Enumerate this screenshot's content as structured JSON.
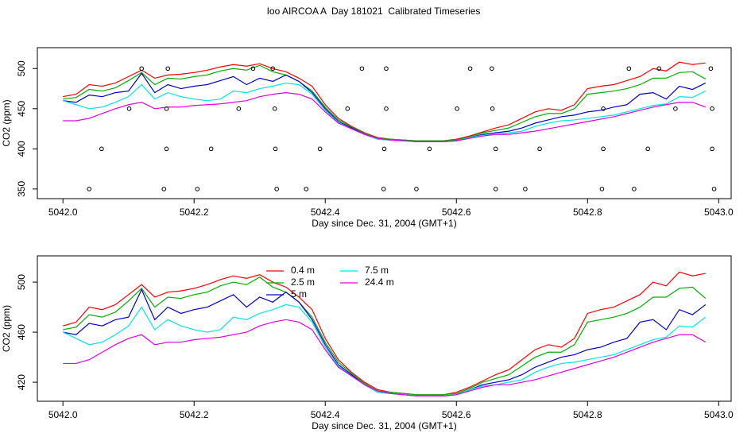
{
  "chart_data": [
    {
      "type": "line",
      "title": "Ioo AIRCOA A  Day 181021  Calibrated Timeseries",
      "x_label": "Day since Dec. 31, 2004 (GMT+1)",
      "y_label": "CO2 (ppm)",
      "x": [
        5042.0,
        5042.02,
        5042.04,
        5042.06,
        5042.08,
        5042.1,
        5042.12,
        5042.14,
        5042.16,
        5042.18,
        5042.2,
        5042.22,
        5042.24,
        5042.26,
        5042.28,
        5042.3,
        5042.32,
        5042.34,
        5042.36,
        5042.38,
        5042.4,
        5042.42,
        5042.44,
        5042.46,
        5042.48,
        5042.5,
        5042.52,
        5042.54,
        5042.56,
        5042.58,
        5042.6,
        5042.62,
        5042.64,
        5042.66,
        5042.68,
        5042.7,
        5042.72,
        5042.74,
        5042.76,
        5042.78,
        5042.8,
        5042.82,
        5042.84,
        5042.86,
        5042.88,
        5042.9,
        5042.92,
        5042.94,
        5042.96,
        5042.98
      ],
      "series": [
        {
          "color": "#ff0000",
          "values": [
            465,
            468,
            480,
            478,
            482,
            490,
            498,
            488,
            492,
            493,
            495,
            498,
            502,
            505,
            503,
            506,
            500,
            496,
            488,
            478,
            455,
            438,
            428,
            420,
            414,
            412,
            411,
            410,
            410,
            410,
            412,
            416,
            421,
            426,
            430,
            438,
            446,
            450,
            448,
            455,
            475,
            478,
            480,
            485,
            490,
            500,
            497,
            508,
            505,
            507
          ]
        },
        {
          "color": "#00b000",
          "values": [
            462,
            464,
            474,
            472,
            476,
            485,
            495,
            480,
            488,
            487,
            490,
            492,
            497,
            500,
            498,
            504,
            496,
            492,
            484,
            472,
            452,
            436,
            427,
            419,
            413,
            412,
            411,
            410,
            410,
            410,
            411,
            415,
            420,
            423,
            426,
            433,
            440,
            444,
            444,
            450,
            468,
            470,
            472,
            475,
            480,
            488,
            488,
            495,
            496,
            487
          ]
        },
        {
          "color": "#0000cd",
          "values": [
            460,
            458,
            467,
            465,
            470,
            472,
            494,
            470,
            480,
            475,
            478,
            480,
            485,
            490,
            480,
            488,
            484,
            492,
            484,
            470,
            450,
            434,
            426,
            418,
            412,
            411,
            410,
            409,
            409,
            409,
            410,
            414,
            418,
            420,
            422,
            426,
            432,
            436,
            440,
            442,
            446,
            448,
            452,
            455,
            468,
            470,
            462,
            478,
            474,
            482
          ]
        },
        {
          "color": "#00e5e5",
          "values": [
            460,
            455,
            450,
            452,
            458,
            465,
            480,
            462,
            470,
            465,
            462,
            460,
            462,
            472,
            470,
            475,
            478,
            482,
            480,
            468,
            448,
            433,
            425,
            418,
            412,
            411,
            410,
            409,
            409,
            409,
            410,
            414,
            417,
            418,
            420,
            422,
            428,
            432,
            435,
            436,
            438,
            440,
            442,
            446,
            450,
            454,
            456,
            465,
            464,
            472
          ]
        },
        {
          "color": "#e000e0",
          "values": [
            435,
            435,
            438,
            444,
            450,
            455,
            458,
            450,
            452,
            452,
            454,
            455,
            456,
            458,
            460,
            465,
            468,
            470,
            468,
            462,
            446,
            432,
            425,
            418,
            413,
            411,
            410,
            409,
            409,
            409,
            410,
            413,
            416,
            418,
            418,
            420,
            422,
            425,
            428,
            431,
            434,
            437,
            440,
            444,
            448,
            452,
            455,
            458,
            458,
            452
          ]
        }
      ],
      "points": {
        "x": [
          5042.12,
          5042.16,
          5042.29,
          5042.32,
          5042.456,
          5042.493,
          5042.621,
          5042.654,
          5042.863,
          5042.909,
          5042.988,
          5042.101,
          5042.158,
          5042.268,
          5042.323,
          5042.434,
          5042.493,
          5042.601,
          5042.655,
          5042.824,
          5042.934,
          5042.99,
          5042.059,
          5042.158,
          5042.226,
          5042.324,
          5042.392,
          5042.49,
          5042.559,
          5042.66,
          5042.727,
          5042.824,
          5042.892,
          5042.99,
          5042.04,
          5042.154,
          5042.205,
          5042.326,
          5042.371,
          5042.489,
          5042.539,
          5042.66,
          5042.705,
          5042.822,
          5042.871,
          5042.993
        ],
        "y": [
          500,
          500,
          500,
          500,
          500,
          500,
          500,
          500,
          500,
          500,
          500,
          450,
          450,
          450,
          450,
          450,
          450,
          450,
          450,
          450,
          450,
          450,
          400,
          400,
          400,
          400,
          400,
          400,
          400,
          400,
          400,
          400,
          400,
          400,
          350,
          350,
          350,
          350,
          350,
          350,
          350,
          350,
          350,
          350,
          350,
          350
        ]
      },
      "xlim": [
        5041.961,
        5043.019
      ],
      "ylim": [
        338,
        526
      ],
      "xticks": [
        {
          "value": 5042.0,
          "label": "5042.0"
        },
        {
          "value": 5042.2,
          "label": "5042.2"
        },
        {
          "value": 5042.4,
          "label": "5042.4"
        },
        {
          "value": 5042.6,
          "label": "5042.6"
        },
        {
          "value": 5042.8,
          "label": "5042.8"
        },
        {
          "value": 5043.0,
          "label": "5043.0"
        }
      ],
      "yticks": [
        350,
        400,
        450,
        500
      ]
    },
    {
      "type": "line",
      "x_label": "Day since Dec. 31, 2004 (GMT+1)",
      "y_label": "CO2 (ppm)",
      "x": [
        5042.0,
        5042.02,
        5042.04,
        5042.06,
        5042.08,
        5042.1,
        5042.12,
        5042.14,
        5042.16,
        5042.18,
        5042.2,
        5042.22,
        5042.24,
        5042.26,
        5042.28,
        5042.3,
        5042.32,
        5042.34,
        5042.36,
        5042.38,
        5042.4,
        5042.42,
        5042.44,
        5042.46,
        5042.48,
        5042.5,
        5042.52,
        5042.54,
        5042.56,
        5042.58,
        5042.6,
        5042.62,
        5042.64,
        5042.66,
        5042.68,
        5042.7,
        5042.72,
        5042.74,
        5042.76,
        5042.78,
        5042.8,
        5042.82,
        5042.84,
        5042.86,
        5042.88,
        5042.9,
        5042.92,
        5042.94,
        5042.96,
        5042.98
      ],
      "series": [
        {
          "name": "0.4 m",
          "color": "#ff0000",
          "values": [
            465,
            468,
            480,
            478,
            482,
            490,
            498,
            488,
            492,
            493,
            495,
            498,
            502,
            505,
            503,
            506,
            500,
            496,
            488,
            478,
            455,
            438,
            428,
            420,
            414,
            412,
            411,
            410,
            410,
            410,
            412,
            416,
            421,
            426,
            430,
            438,
            446,
            450,
            448,
            455,
            475,
            478,
            480,
            485,
            490,
            500,
            497,
            508,
            505,
            507
          ]
        },
        {
          "name": "2.5 m",
          "color": "#00b000",
          "values": [
            462,
            464,
            474,
            472,
            476,
            485,
            495,
            480,
            488,
            487,
            490,
            492,
            497,
            500,
            498,
            504,
            496,
            492,
            484,
            472,
            452,
            436,
            427,
            419,
            413,
            412,
            411,
            410,
            410,
            410,
            411,
            415,
            420,
            423,
            426,
            433,
            440,
            444,
            444,
            450,
            468,
            470,
            472,
            475,
            480,
            488,
            488,
            495,
            496,
            487
          ]
        },
        {
          "name": "5 m",
          "color": "#0000cd",
          "values": [
            460,
            458,
            467,
            465,
            470,
            472,
            494,
            470,
            480,
            475,
            478,
            480,
            485,
            490,
            480,
            488,
            484,
            492,
            484,
            470,
            450,
            434,
            426,
            418,
            412,
            411,
            410,
            409,
            409,
            409,
            410,
            414,
            418,
            420,
            422,
            426,
            432,
            436,
            440,
            442,
            446,
            448,
            452,
            455,
            468,
            470,
            462,
            478,
            474,
            482
          ]
        },
        {
          "name": "7.5 m",
          "color": "#00e5e5",
          "values": [
            460,
            455,
            450,
            452,
            458,
            465,
            480,
            462,
            470,
            465,
            462,
            460,
            462,
            472,
            470,
            475,
            478,
            482,
            480,
            468,
            448,
            433,
            425,
            418,
            412,
            411,
            410,
            409,
            409,
            409,
            410,
            414,
            417,
            418,
            420,
            422,
            428,
            432,
            435,
            436,
            438,
            440,
            442,
            446,
            450,
            454,
            456,
            465,
            464,
            472
          ]
        },
        {
          "name": "24.4 m",
          "color": "#e000e0",
          "values": [
            435,
            435,
            438,
            444,
            450,
            455,
            458,
            450,
            452,
            452,
            454,
            455,
            456,
            458,
            460,
            465,
            468,
            470,
            468,
            462,
            446,
            432,
            425,
            418,
            413,
            411,
            410,
            409,
            409,
            409,
            410,
            413,
            416,
            418,
            418,
            420,
            422,
            425,
            428,
            431,
            434,
            437,
            440,
            444,
            448,
            452,
            455,
            458,
            458,
            452
          ]
        }
      ],
      "xlim": [
        5041.961,
        5043.019
      ],
      "ylim": [
        404.8,
        521
      ],
      "xticks": [
        {
          "value": 5042.0,
          "label": "5042.0"
        },
        {
          "value": 5042.2,
          "label": "5042.2"
        },
        {
          "value": 5042.4,
          "label": "5042.4"
        },
        {
          "value": 5042.6,
          "label": "5042.6"
        },
        {
          "value": 5042.8,
          "label": "5042.8"
        },
        {
          "value": 5043.0,
          "label": "5043.0"
        }
      ],
      "yticks": [
        420,
        460,
        500
      ],
      "legend": "top-left"
    }
  ]
}
